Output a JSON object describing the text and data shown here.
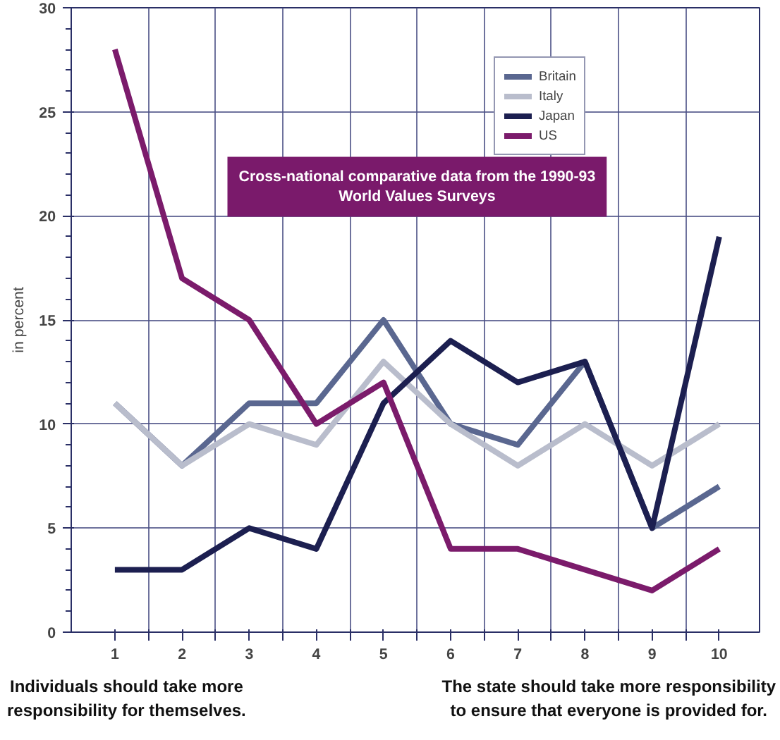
{
  "chart_data": {
    "type": "line",
    "title": "Cross-national comparative data from the 1990-93\nWorld Values Surveys",
    "ylabel": "in percent",
    "x": [
      1,
      2,
      3,
      4,
      5,
      6,
      7,
      8,
      9,
      10
    ],
    "xlim": [
      0.35,
      10.6
    ],
    "xticks": [
      1,
      {
        "value": 1.5,
        "label": null
      },
      2,
      {
        "value": 2.5,
        "label": null
      },
      3,
      {
        "value": 3.5,
        "label": null
      },
      4,
      {
        "value": 4.5,
        "label": null
      },
      5,
      {
        "value": 5.5,
        "label": null
      },
      6,
      {
        "value": 6.5,
        "label": null
      },
      7,
      {
        "value": 7.5,
        "label": null
      },
      8,
      {
        "value": 8.5,
        "label": null
      },
      9,
      {
        "value": 9.5,
        "label": null
      },
      10
    ],
    "ylim": [
      0,
      30
    ],
    "yticks": [
      0,
      5,
      10,
      15,
      20,
      25,
      30
    ],
    "grid": true,
    "legend": "top right",
    "series": [
      {
        "name": "Britain",
        "color": "#5a6790",
        "values": [
          11,
          8,
          11,
          11,
          15,
          10,
          9,
          13,
          5,
          7
        ]
      },
      {
        "name": "Italy",
        "color": "#b9bdcc",
        "values": [
          11,
          8,
          10,
          9,
          13,
          10,
          8,
          10,
          8,
          10
        ]
      },
      {
        "name": "Japan",
        "color": "#1c1f50",
        "values": [
          3,
          3,
          5,
          4,
          11,
          14,
          12,
          13,
          5,
          19
        ]
      },
      {
        "name": "US",
        "color": "#7b1b6b",
        "values": [
          28,
          17,
          15,
          10,
          12,
          4,
          4,
          3,
          2,
          4
        ]
      }
    ],
    "annotations": [
      "Individuals should take more\nresponsibility for themselves.",
      "The state should take more responsibility\nto ensure that everyone is provided for."
    ]
  }
}
